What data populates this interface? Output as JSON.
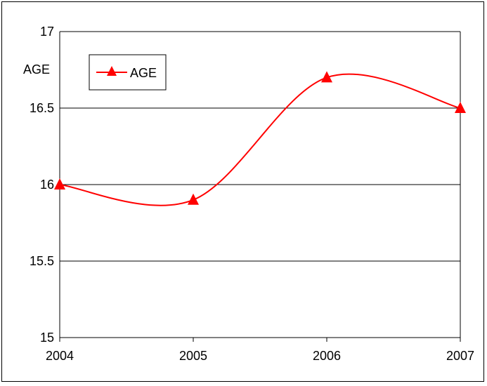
{
  "chart_data": {
    "type": "line",
    "ylabel": "AGE",
    "xlabel": "",
    "x": [
      "2004",
      "2005",
      "2006",
      "2007"
    ],
    "series": [
      {
        "name": "AGE",
        "values": [
          16.0,
          15.9,
          16.7,
          16.5
        ]
      }
    ],
    "ylim": [
      15,
      17
    ],
    "yticks": [
      "15",
      "15.5",
      "16",
      "16.5",
      "17"
    ],
    "grid": "horizontal",
    "legend": "top-left",
    "series_color": "#ff0000",
    "marker": "triangle",
    "smoothed": true
  }
}
